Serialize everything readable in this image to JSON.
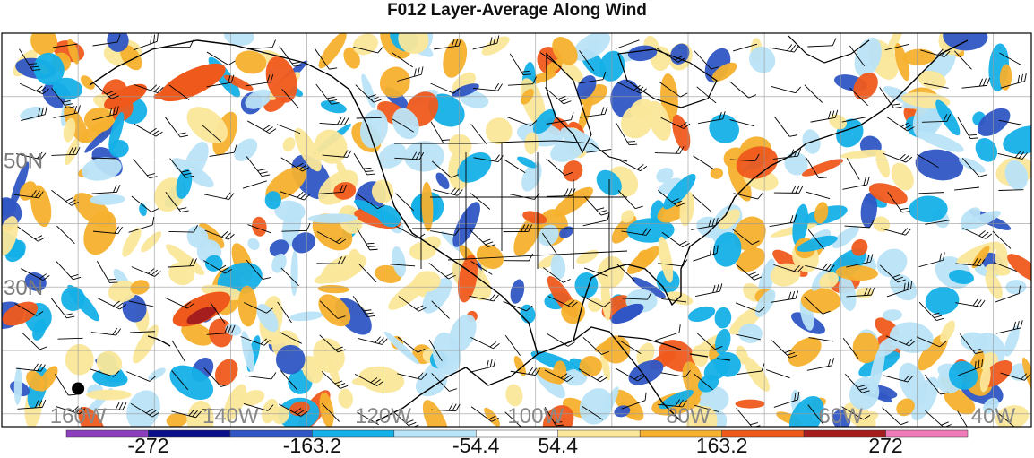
{
  "title": "F012 Layer-Average Along Wind",
  "map": {
    "lat_labels": [
      {
        "name": "lat-label-50n",
        "text": "50N",
        "lat": 50
      },
      {
        "name": "lat-label-30n",
        "text": "30N",
        "lat": 30
      }
    ],
    "lon_labels": [
      {
        "name": "lon-label-160w",
        "text": "160W",
        "lon": -160
      },
      {
        "name": "lon-label-140w",
        "text": "140W",
        "lon": -140
      },
      {
        "name": "lon-label-120w",
        "text": "120W",
        "lon": -120
      },
      {
        "name": "lon-label-100w",
        "text": "100W",
        "lon": -100
      },
      {
        "name": "lon-label-80w",
        "text": "80W",
        "lon": -80
      },
      {
        "name": "lon-label-60w",
        "text": "60W",
        "lon": -60
      },
      {
        "name": "lon-label-40w",
        "text": "40W",
        "lon": -40
      }
    ],
    "extent": {
      "lon_min": -170,
      "lon_max": -35,
      "lat_min": 8,
      "lat_max": 70
    },
    "marker": {
      "name": "station-dot",
      "lon": -160,
      "lat": 14
    }
  },
  "colorbar": {
    "colors": [
      "#8b3fbd",
      "#0c0f8a",
      "#2f56c4",
      "#14b0e8",
      "#b9e3f7",
      "#ffffff",
      "#fbe79a",
      "#f6b12e",
      "#ef5a1c",
      "#a61d1d",
      "#ef7cb8"
    ],
    "ticks": [
      "-272",
      "-163.2",
      "-54.4",
      "54.4",
      "163.2",
      "272"
    ]
  }
}
